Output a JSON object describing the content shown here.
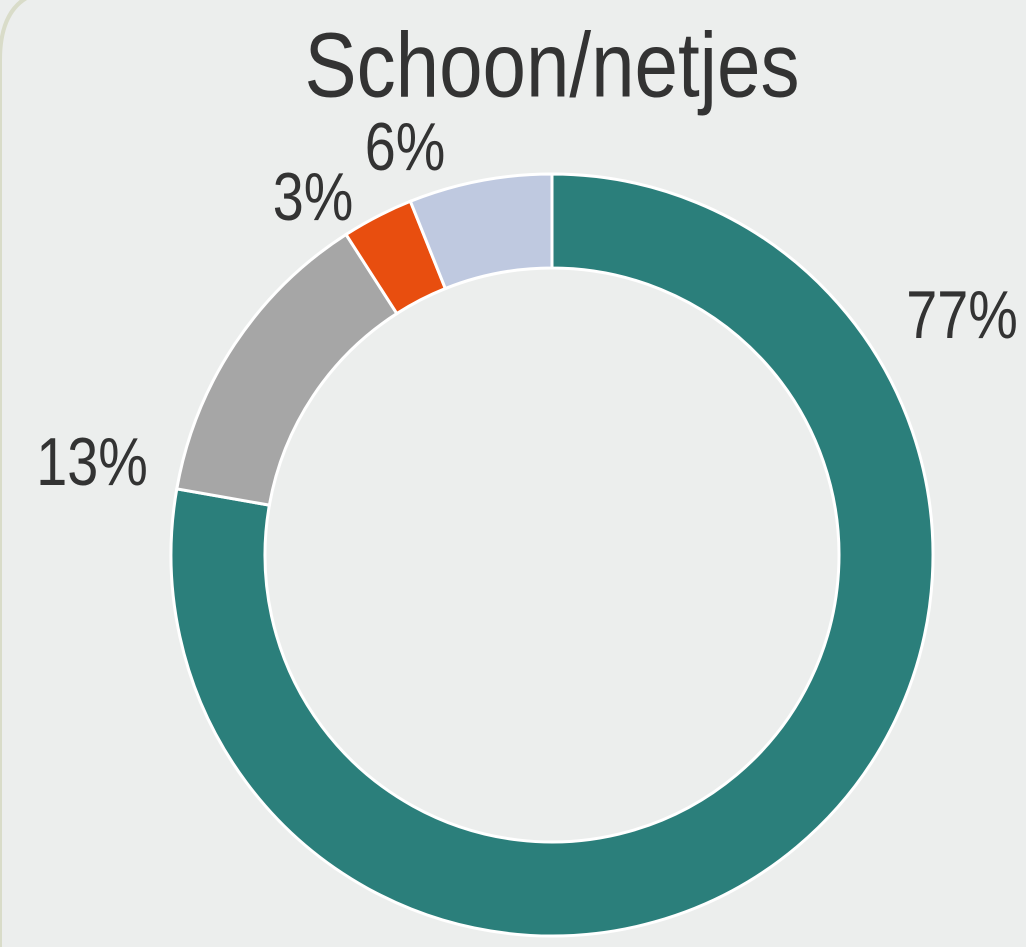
{
  "chart_data": {
    "type": "donut",
    "title": "Schoon/netjes",
    "values": [
      77,
      13,
      3,
      6
    ],
    "value_labels": [
      "77%",
      "13%",
      "3%",
      "6%"
    ],
    "colors": [
      "#2b7f7b",
      "#a6a6a6",
      "#e84e0f",
      "#bfc9e0"
    ]
  }
}
